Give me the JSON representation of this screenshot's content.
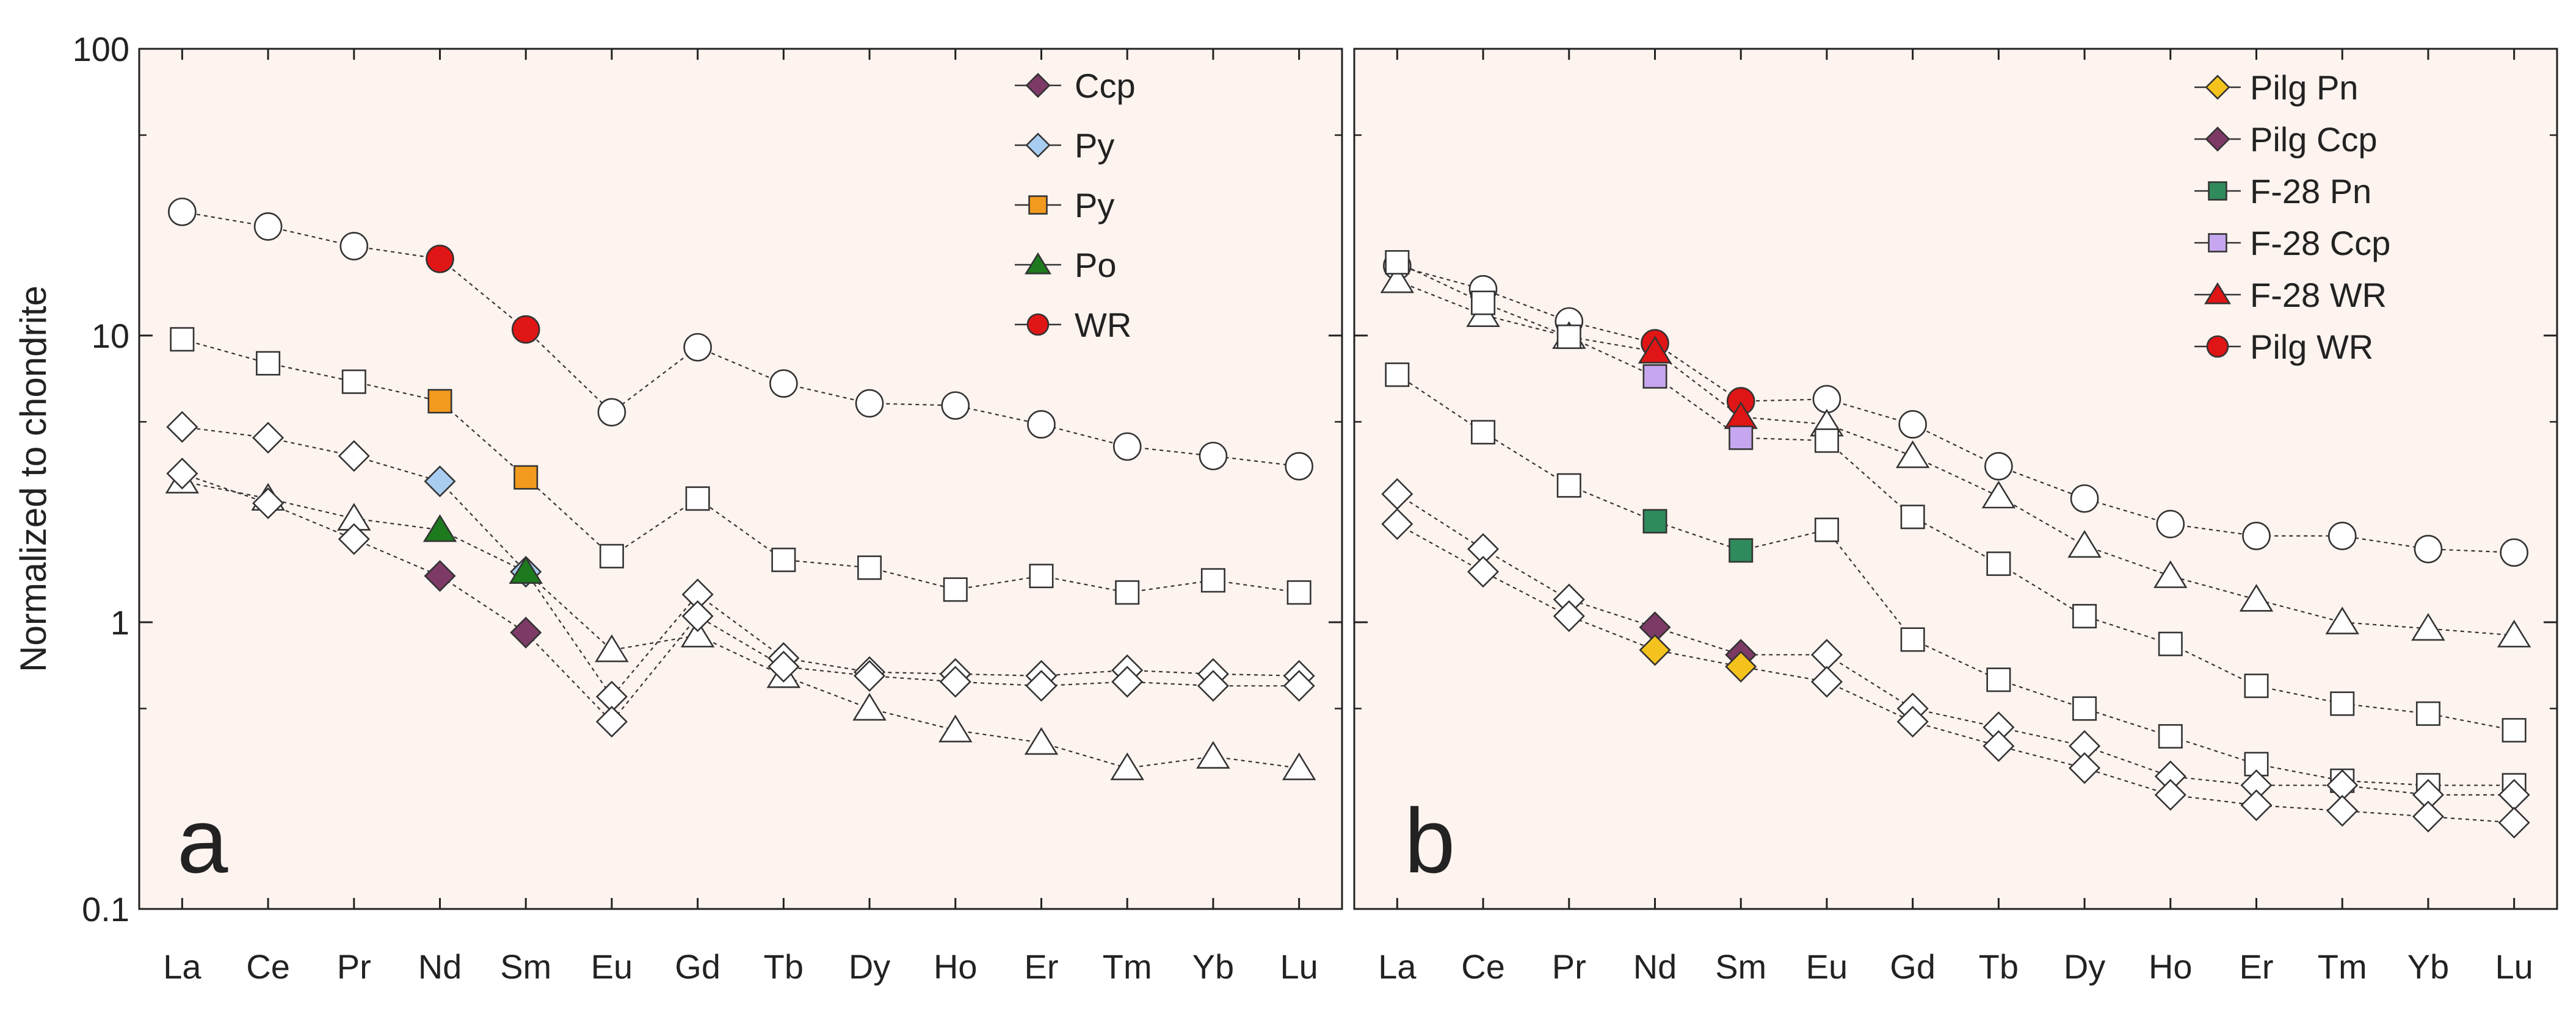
{
  "ylabel": "Normalized to chondrite",
  "y_ticks": [
    "0.1",
    "1",
    "10",
    "100"
  ],
  "colors": {
    "panel_bg": "#fdf3ef",
    "axis": "#222222",
    "open_marker": "#ffffff",
    "ccp": "#7d3a66",
    "py_blue": "#a9cdf0",
    "py_orange": "#f29a1e",
    "po": "#1d7a1d",
    "wr_red": "#e01515",
    "pn_yellow": "#f4c21c",
    "pn_green": "#2f8a5c",
    "ccp_lilac": "#c6a6ee"
  },
  "chart_data": [
    {
      "type": "line",
      "panel_label": "a",
      "yscale": "log",
      "ylim": [
        0.1,
        100
      ],
      "categories": [
        "La",
        "Ce",
        "Pr",
        "Nd",
        "Sm",
        "Eu",
        "Gd",
        "Tb",
        "Dy",
        "Ho",
        "Er",
        "Tm",
        "Yb",
        "Lu"
      ],
      "legend": [
        {
          "label": "Ccp",
          "marker": "diamond",
          "color": "#7d3a66"
        },
        {
          "label": "Py",
          "marker": "diamond",
          "color": "#a9cdf0"
        },
        {
          "label": "Py",
          "marker": "square",
          "color": "#f29a1e"
        },
        {
          "label": "Po",
          "marker": "triangle",
          "color": "#1d7a1d"
        },
        {
          "label": "WR",
          "marker": "circle",
          "color": "#e01515"
        }
      ],
      "series": [
        {
          "name": "WR",
          "marker": "circle",
          "values": [
            27,
            24,
            20.5,
            18.5,
            10.5,
            5.4,
            9.1,
            6.8,
            5.8,
            5.7,
            4.9,
            4.1,
            3.8,
            3.5
          ],
          "filled": [
            {
              "index": 3,
              "color": "#e01515"
            },
            {
              "index": 4,
              "color": "#e01515"
            }
          ]
        },
        {
          "name": "Py (square)",
          "marker": "square",
          "values": [
            9.7,
            8.0,
            6.9,
            5.9,
            3.2,
            1.7,
            2.7,
            1.65,
            1.55,
            1.3,
            1.45,
            1.27,
            1.4,
            1.27
          ],
          "filled": [
            {
              "index": 3,
              "color": "#f29a1e"
            },
            {
              "index": 4,
              "color": "#f29a1e"
            }
          ]
        },
        {
          "name": "Py (diamond)",
          "marker": "diamond",
          "values": [
            4.8,
            4.4,
            3.8,
            3.1,
            1.5,
            0.55,
            1.25,
            0.75,
            0.67,
            0.66,
            0.65,
            0.68,
            0.66,
            0.65
          ],
          "filled": [
            {
              "index": 3,
              "color": "#a9cdf0"
            },
            {
              "index": 4,
              "color": "#a9cdf0"
            }
          ]
        },
        {
          "name": "Po",
          "marker": "triangle",
          "values": [
            3.1,
            2.7,
            2.3,
            2.1,
            1.5,
            0.8,
            0.9,
            0.65,
            0.5,
            0.42,
            0.38,
            0.31,
            0.34,
            0.31
          ],
          "filled": [
            {
              "index": 3,
              "color": "#1d7a1d"
            },
            {
              "index": 4,
              "color": "#1d7a1d"
            }
          ]
        },
        {
          "name": "Ccp",
          "marker": "diamond",
          "values": [
            3.3,
            2.6,
            1.95,
            1.45,
            0.92,
            0.45,
            1.05,
            0.7,
            0.65,
            0.62,
            0.6,
            0.62,
            0.6,
            0.6
          ],
          "filled": [
            {
              "index": 3,
              "color": "#7d3a66"
            },
            {
              "index": 4,
              "color": "#7d3a66"
            }
          ]
        }
      ]
    },
    {
      "type": "line",
      "panel_label": "b",
      "yscale": "log",
      "ylim": [
        0.1,
        100
      ],
      "categories": [
        "La",
        "Ce",
        "Pr",
        "Nd",
        "Sm",
        "Eu",
        "Gd",
        "Tb",
        "Dy",
        "Ho",
        "Er",
        "Tm",
        "Yb",
        "Lu"
      ],
      "legend": [
        {
          "label": "Pilg Pn",
          "marker": "diamond",
          "color": "#f4c21c"
        },
        {
          "label": "Pilg  Ccp",
          "marker": "diamond",
          "color": "#7d3a66"
        },
        {
          "label": "F-28 Pn",
          "marker": "square",
          "color": "#2f8a5c"
        },
        {
          "label": "F-28 Ccp",
          "marker": "square",
          "color": "#c6a6ee"
        },
        {
          "label": "F-28 WR",
          "marker": "triangle",
          "color": "#e01515"
        },
        {
          "label": "Pilg  WR",
          "marker": "circle",
          "color": "#e01515"
        }
      ],
      "series": [
        {
          "name": "Pilg WR",
          "marker": "circle",
          "values": [
            17.5,
            14.5,
            11.2,
            9.4,
            5.9,
            6.0,
            4.9,
            3.5,
            2.7,
            2.2,
            2.0,
            2.0,
            1.8,
            1.75
          ],
          "filled": [
            {
              "index": 3,
              "color": "#e01515"
            },
            {
              "index": 4,
              "color": "#e01515"
            }
          ]
        },
        {
          "name": "F-28 WR",
          "marker": "triangle",
          "values": [
            15.5,
            11.8,
            9.9,
            8.8,
            5.2,
            4.9,
            3.8,
            2.75,
            1.85,
            1.45,
            1.2,
            1.0,
            0.95,
            0.9
          ],
          "filled": [
            {
              "index": 3,
              "color": "#e01515"
            },
            {
              "index": 4,
              "color": "#e01515"
            }
          ]
        },
        {
          "name": "F-28 Ccp",
          "marker": "square",
          "values": [
            18.0,
            13.0,
            9.9,
            7.2,
            4.4,
            4.3,
            2.33,
            1.6,
            1.05,
            0.84,
            0.6,
            0.52,
            0.48,
            0.42
          ],
          "filled": [
            {
              "index": 3,
              "color": "#c6a6ee"
            },
            {
              "index": 4,
              "color": "#c6a6ee"
            }
          ]
        },
        {
          "name": "F-28 Pn",
          "marker": "square",
          "values": [
            7.3,
            4.6,
            3.0,
            2.25,
            1.78,
            2.1,
            0.87,
            0.63,
            0.5,
            0.4,
            0.32,
            0.28,
            0.27,
            0.27
          ],
          "filled": [
            {
              "index": 3,
              "color": "#2f8a5c"
            },
            {
              "index": 4,
              "color": "#2f8a5c"
            }
          ]
        },
        {
          "name": "Pilg Ccp",
          "marker": "diamond",
          "values": [
            2.8,
            1.8,
            1.2,
            0.96,
            0.77,
            0.77,
            0.5,
            0.43,
            0.37,
            0.29,
            0.27,
            0.27,
            0.25,
            0.25
          ],
          "filled": [
            {
              "index": 3,
              "color": "#7d3a66"
            },
            {
              "index": 4,
              "color": "#7d3a66"
            }
          ]
        },
        {
          "name": "Pilg Pn",
          "marker": "diamond",
          "values": [
            2.2,
            1.5,
            1.05,
            0.8,
            0.7,
            0.62,
            0.45,
            0.37,
            0.31,
            0.25,
            0.23,
            0.22,
            0.21,
            0.2
          ],
          "filled": [
            {
              "index": 3,
              "color": "#f4c21c"
            },
            {
              "index": 4,
              "color": "#f4c21c"
            }
          ]
        }
      ]
    }
  ]
}
